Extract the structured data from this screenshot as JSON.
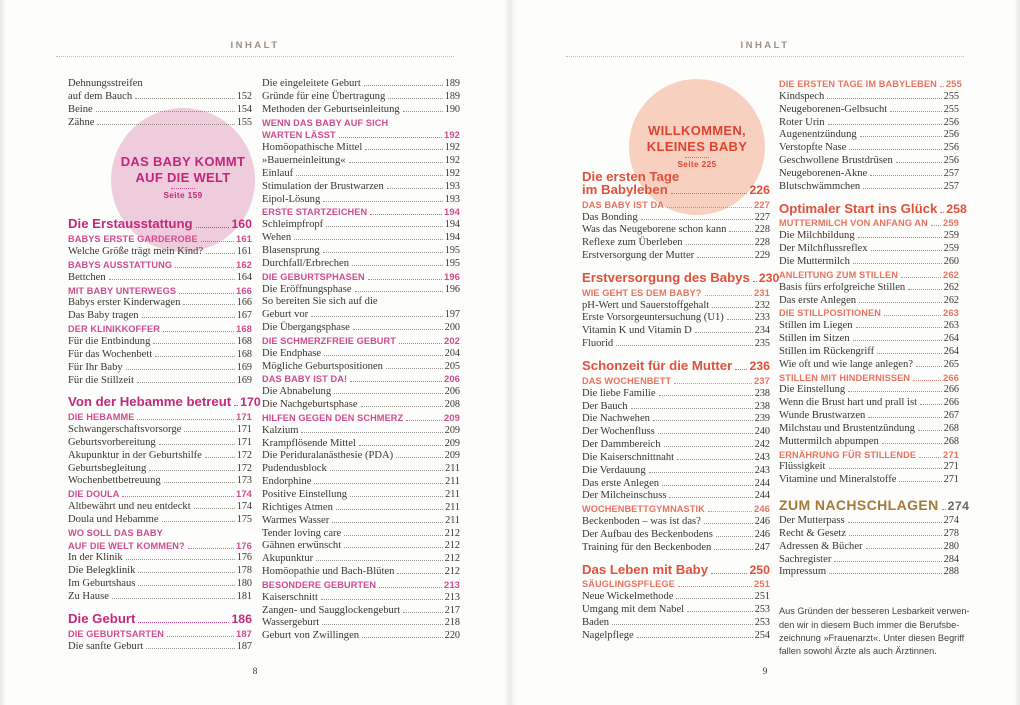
{
  "colors": {
    "ink": "#39362f",
    "header-brown": "#9d9080",
    "accent-left": "#c32a7c",
    "accent-left-sec": "#d04b92",
    "accent-right": "#e2503c",
    "accent-right-sec": "#e97361",
    "bronze": "#a5783e",
    "muted-num": "#6d6960"
  },
  "pages": [
    {
      "side": "left",
      "header": "INHALT",
      "page_number": "8",
      "circle": {
        "title_lines": [
          "DAS BABY KOMMT",
          "AUF DIE WELT"
        ],
        "subtitle": "Seite 159",
        "fill": "#efccdb",
        "text_color": "#c2267c"
      },
      "columns": [
        [
          {
            "s": "i2",
            "t": [
              "Dehnungsstreifen",
              "auf dem Bauch"
            ],
            "p": "152"
          },
          {
            "s": "i",
            "t": "Beine",
            "p": "154"
          },
          {
            "s": "i",
            "t": "Zähne",
            "p": "155"
          },
          {
            "s": "gap",
            "h": 80
          },
          {
            "s": "c",
            "t": "Die Erstausstattung",
            "p": "160"
          },
          {
            "s": "s",
            "t": "BABYS ERSTE GARDEROBE",
            "p": "161"
          },
          {
            "s": "i",
            "t": "Welche Größe trägt mein Kind?",
            "p": "161"
          },
          {
            "s": "s",
            "t": "BABYS AUSSTATTUNG",
            "p": "162"
          },
          {
            "s": "i",
            "t": "Bettchen",
            "p": "164"
          },
          {
            "s": "s",
            "t": "MIT BABY UNTERWEGS",
            "p": "166"
          },
          {
            "s": "i",
            "t": "Babys erster Kinderwagen",
            "p": "166"
          },
          {
            "s": "i",
            "t": "Das Baby tragen",
            "p": "167"
          },
          {
            "s": "s",
            "t": "DER KLINIKKOFFER",
            "p": "168"
          },
          {
            "s": "i",
            "t": "Für die Entbindung",
            "p": "168"
          },
          {
            "s": "i",
            "t": "Für das Wochenbett",
            "p": "168"
          },
          {
            "s": "i",
            "t": "Für Ihr Baby",
            "p": "169"
          },
          {
            "s": "i",
            "t": "Für die Stillzeit",
            "p": "169"
          },
          {
            "s": "c",
            "t": "Von der Hebamme betreut",
            "p": "170"
          },
          {
            "s": "s",
            "t": "DIE HEBAMME",
            "p": "171"
          },
          {
            "s": "i",
            "t": "Schwangerschaftsvorsorge",
            "p": "171"
          },
          {
            "s": "i",
            "t": "Geburtsvorbereitung",
            "p": "171"
          },
          {
            "s": "i",
            "t": "Akupunktur in der Geburtshilfe",
            "p": "172"
          },
          {
            "s": "i",
            "t": "Geburtsbegleitung",
            "p": "172"
          },
          {
            "s": "i",
            "t": "Wochenbettbetreuung",
            "p": "173"
          },
          {
            "s": "s",
            "t": "DIE DOULA",
            "p": "174"
          },
          {
            "s": "i",
            "t": "Altbewährt und neu entdeckt",
            "p": "174"
          },
          {
            "s": "i",
            "t": "Doula und Hebamme",
            "p": "175"
          },
          {
            "s": "s2",
            "t": [
              "WO SOLL DAS BABY",
              "AUF DIE WELT KOMMEN?"
            ],
            "p": "176"
          },
          {
            "s": "i",
            "t": "In der Klinik",
            "p": "176"
          },
          {
            "s": "i",
            "t": "Die Belegklinik",
            "p": "178"
          },
          {
            "s": "i",
            "t": "Im Geburtshaus",
            "p": "180"
          },
          {
            "s": "i",
            "t": "Zu Hause",
            "p": "181"
          },
          {
            "s": "c",
            "t": "Die Geburt",
            "p": "186"
          },
          {
            "s": "s",
            "t": "DIE GEBURTSARTEN",
            "p": "187"
          },
          {
            "s": "i",
            "t": "Die sanfte Geburt",
            "p": "187"
          }
        ],
        [
          {
            "s": "i",
            "t": "Die eingeleitete Geburt",
            "p": "189"
          },
          {
            "s": "i",
            "t": "Gründe für eine Übertragung",
            "p": "189"
          },
          {
            "s": "i",
            "t": "Methoden der Geburtseinleitung",
            "p": "190"
          },
          {
            "s": "s2",
            "t": [
              "WENN DAS BABY AUF SICH",
              "WARTEN LÄSST"
            ],
            "p": "192"
          },
          {
            "s": "i",
            "t": "Homöopathische Mittel",
            "p": "192"
          },
          {
            "s": "i",
            "t": "»Bauerneinleitung«",
            "p": "192"
          },
          {
            "s": "i",
            "t": "Einlauf",
            "p": "192"
          },
          {
            "s": "i",
            "t": "Stimulation der Brustwarzen",
            "p": "193"
          },
          {
            "s": "i",
            "t": "Eipol-Lösung",
            "p": "193"
          },
          {
            "s": "s",
            "t": "ERSTE STARTZEICHEN",
            "p": "194"
          },
          {
            "s": "i",
            "t": "Schleimpfropf",
            "p": "194"
          },
          {
            "s": "i",
            "t": "Wehen",
            "p": "194"
          },
          {
            "s": "i",
            "t": "Blasensprung",
            "p": "195"
          },
          {
            "s": "i",
            "t": "Durchfall/Erbrechen",
            "p": "195"
          },
          {
            "s": "s",
            "t": "DIE GEBURTSPHASEN",
            "p": "196"
          },
          {
            "s": "i",
            "t": "Die Eröffnungsphase",
            "p": "196"
          },
          {
            "s": "i2",
            "t": [
              "So bereiten Sie sich auf die",
              "Geburt vor"
            ],
            "p": "197"
          },
          {
            "s": "i",
            "t": "Die Übergangsphase",
            "p": "200"
          },
          {
            "s": "s",
            "t": "DIE SCHMERZFREIE GEBURT",
            "p": "202"
          },
          {
            "s": "i",
            "t": "Die Endphase",
            "p": "204"
          },
          {
            "s": "i",
            "t": "Mögliche Geburtspositionen",
            "p": "205"
          },
          {
            "s": "s",
            "t": "DAS BABY IST DA!",
            "p": "206"
          },
          {
            "s": "i",
            "t": "Die Abnabelung",
            "p": "206"
          },
          {
            "s": "i",
            "t": "Die Nachgeburtsphase",
            "p": "208"
          },
          {
            "s": "s",
            "t": "HILFEN GEGEN DEN SCHMERZ",
            "p": "209"
          },
          {
            "s": "i",
            "t": "Kalzium",
            "p": "209"
          },
          {
            "s": "i",
            "t": "Krampflösende Mittel",
            "p": "209"
          },
          {
            "s": "i",
            "t": "Die Periduralanästhesie (PDA)",
            "p": "209"
          },
          {
            "s": "i",
            "t": "Pudendusblock",
            "p": "211"
          },
          {
            "s": "i",
            "t": "Endorphine",
            "p": "211"
          },
          {
            "s": "i",
            "t": "Positive Einstellung",
            "p": "211"
          },
          {
            "s": "i",
            "t": "Richtiges Atmen",
            "p": "211"
          },
          {
            "s": "i",
            "t": "Warmes Wasser",
            "p": "211"
          },
          {
            "s": "i",
            "t": "Tender loving care",
            "p": "212"
          },
          {
            "s": "i",
            "t": "Gähnen erwünscht",
            "p": "212"
          },
          {
            "s": "i",
            "t": "Akupunktur",
            "p": "212"
          },
          {
            "s": "i",
            "t": "Homöopathie und Bach-Blüten",
            "p": "212"
          },
          {
            "s": "s",
            "t": "BESONDERE GEBURTEN",
            "p": "213"
          },
          {
            "s": "i",
            "t": "Kaiserschnitt",
            "p": "213"
          },
          {
            "s": "i",
            "t": "Zangen- und Saugglockengeburt",
            "p": "217"
          },
          {
            "s": "i",
            "t": "Wassergeburt",
            "p": "218"
          },
          {
            "s": "i",
            "t": "Geburt von Zwillingen",
            "p": "220"
          }
        ]
      ]
    },
    {
      "side": "right",
      "header": "INHALT",
      "page_number": "9",
      "circle": {
        "title_lines": [
          "WILLKOMMEN,",
          "KLEINES BABY"
        ],
        "subtitle": "Seite 225",
        "fill": "#f8d0c0",
        "text_color": "#dd4431"
      },
      "columns": [
        [
          {
            "s": "gap",
            "h": 84
          },
          {
            "s": "c2",
            "t": [
              "Die ersten Tage",
              "im Babyleben"
            ],
            "p": "226"
          },
          {
            "s": "s",
            "t": "DAS BABY IST DA",
            "p": "227"
          },
          {
            "s": "i",
            "t": "Das Bonding",
            "p": "227"
          },
          {
            "s": "i",
            "t": "Was das Neugeborene schon kann",
            "p": "228"
          },
          {
            "s": "i",
            "t": "Reflexe zum Überleben",
            "p": "228"
          },
          {
            "s": "i",
            "t": "Erstversorgung der Mutter",
            "p": "229"
          },
          {
            "s": "c",
            "t": "Erstversorgung des Babys",
            "p": "230"
          },
          {
            "s": "s",
            "t": "WIE GEHT ES DEM BABY?",
            "p": "231"
          },
          {
            "s": "i",
            "t": "pH-Wert und Sauerstoffgehalt",
            "p": "232"
          },
          {
            "s": "i",
            "t": "Erste Vorsorgeuntersuchung (U1)",
            "p": "233"
          },
          {
            "s": "i",
            "t": "Vitamin K und Vitamin D",
            "p": "234"
          },
          {
            "s": "i",
            "t": "Fluorid",
            "p": "235"
          },
          {
            "s": "c",
            "t": "Schonzeit für die Mutter",
            "p": "236"
          },
          {
            "s": "s",
            "t": "DAS WOCHENBETT",
            "p": "237"
          },
          {
            "s": "i",
            "t": "Die liebe Familie",
            "p": "238"
          },
          {
            "s": "i",
            "t": "Der Bauch",
            "p": "238"
          },
          {
            "s": "i",
            "t": "Die Nachwehen",
            "p": "239"
          },
          {
            "s": "i",
            "t": "Der Wochenfluss",
            "p": "240"
          },
          {
            "s": "i",
            "t": "Der Dammbereich",
            "p": "242"
          },
          {
            "s": "i",
            "t": "Die Kaiserschnittnaht",
            "p": "243"
          },
          {
            "s": "i",
            "t": "Die Verdauung",
            "p": "243"
          },
          {
            "s": "i",
            "t": "Das erste Anlegen",
            "p": "244"
          },
          {
            "s": "i",
            "t": "Der Milcheinschuss",
            "p": "244"
          },
          {
            "s": "s",
            "t": "WOCHENBETTGYMNASTIK",
            "p": "246"
          },
          {
            "s": "i",
            "t": "Beckenboden – was ist das?",
            "p": "246"
          },
          {
            "s": "i",
            "t": "Der Aufbau des Beckenbodens",
            "p": "246"
          },
          {
            "s": "i",
            "t": "Training für den Beckenboden",
            "p": "247"
          },
          {
            "s": "c",
            "t": "Das Leben mit Baby",
            "p": "250"
          },
          {
            "s": "s",
            "t": "SÄUGLINGSPFLEGE",
            "p": "251"
          },
          {
            "s": "i",
            "t": "Neue Wickelmethode",
            "p": "251"
          },
          {
            "s": "i",
            "t": "Umgang mit dem Nabel",
            "p": "253"
          },
          {
            "s": "i",
            "t": "Baden",
            "p": "253"
          },
          {
            "s": "i",
            "t": "Nagelpflege",
            "p": "254"
          }
        ],
        [
          {
            "s": "s",
            "t": "DIE ERSTEN TAGE IM BABYLEBEN",
            "p": "255"
          },
          {
            "s": "i",
            "t": "Kindspech",
            "p": "255"
          },
          {
            "s": "i",
            "t": "Neugeborenen-Gelbsucht",
            "p": "255"
          },
          {
            "s": "i",
            "t": "Roter Urin",
            "p": "256"
          },
          {
            "s": "i",
            "t": "Augenentzündung",
            "p": "256"
          },
          {
            "s": "i",
            "t": "Verstopfte Nase",
            "p": "256"
          },
          {
            "s": "i",
            "t": "Geschwollene Brustdrüsen",
            "p": "256"
          },
          {
            "s": "i",
            "t": "Neugeborenen-Akne",
            "p": "257"
          },
          {
            "s": "i",
            "t": "Blutschwämmchen",
            "p": "257"
          },
          {
            "s": "c",
            "t": "Optimaler Start ins Glück",
            "p": "258"
          },
          {
            "s": "s",
            "t": "MUTTERMILCH VON ANFANG AN",
            "p": "259"
          },
          {
            "s": "i",
            "t": "Die Milchbildung",
            "p": "259"
          },
          {
            "s": "i",
            "t": "Der Milchflussreflex",
            "p": "259"
          },
          {
            "s": "i",
            "t": "Die Muttermilch",
            "p": "260"
          },
          {
            "s": "s",
            "t": "ANLEITUNG ZUM STILLEN",
            "p": "262"
          },
          {
            "s": "i",
            "t": "Basis fürs erfolgreiche Stillen",
            "p": "262"
          },
          {
            "s": "i",
            "t": "Das erste Anlegen",
            "p": "262"
          },
          {
            "s": "s",
            "t": "DIE STILLPOSITIONEN",
            "p": "263"
          },
          {
            "s": "i",
            "t": "Stillen im Liegen",
            "p": "263"
          },
          {
            "s": "i",
            "t": "Stillen im Sitzen",
            "p": "264"
          },
          {
            "s": "i",
            "t": "Stillen im Rückengriff",
            "p": "264"
          },
          {
            "s": "i",
            "t": "Wie oft und wie lange anlegen?",
            "p": "265"
          },
          {
            "s": "s",
            "t": "STILLEN MIT HINDERNISSEN",
            "p": "266"
          },
          {
            "s": "i",
            "t": "Die Einstellung",
            "p": "266"
          },
          {
            "s": "i",
            "t": "Wenn die Brust hart und prall ist",
            "p": "266"
          },
          {
            "s": "i",
            "t": "Wunde Brustwarzen",
            "p": "267"
          },
          {
            "s": "i",
            "t": "Milchstau und Brustentzündung",
            "p": "268"
          },
          {
            "s": "i",
            "t": "Muttermilch abpumpen",
            "p": "268"
          },
          {
            "s": "s",
            "t": "ERNÄHRUNG FÜR STILLENDE",
            "p": "271"
          },
          {
            "s": "i",
            "t": "Flüssigkeit",
            "p": "271"
          },
          {
            "s": "i",
            "t": "Vitamine und Mineralstoffe",
            "p": "271"
          },
          {
            "s": "cr",
            "t": "ZUM NACHSCHLAGEN",
            "p": "274"
          },
          {
            "s": "i",
            "t": "Der Mutterpass",
            "p": "274"
          },
          {
            "s": "i",
            "t": "Recht & Gesetz",
            "p": "278"
          },
          {
            "s": "i",
            "t": "Adressen & Bücher",
            "p": "280"
          },
          {
            "s": "i",
            "t": "Sachregister",
            "p": "284"
          },
          {
            "s": "i",
            "t": "Impressum",
            "p": "288"
          },
          {
            "s": "note",
            "lines": [
              "Aus Gründen der besseren Lesbarkeit verwen-",
              "den wir in diesem Buch immer die Berufsbe-",
              "zeichnung »Frauenarzt«. Unter diesen Begriff",
              "fallen sowohl Ärzte als auch Ärztinnen."
            ]
          }
        ]
      ]
    }
  ]
}
